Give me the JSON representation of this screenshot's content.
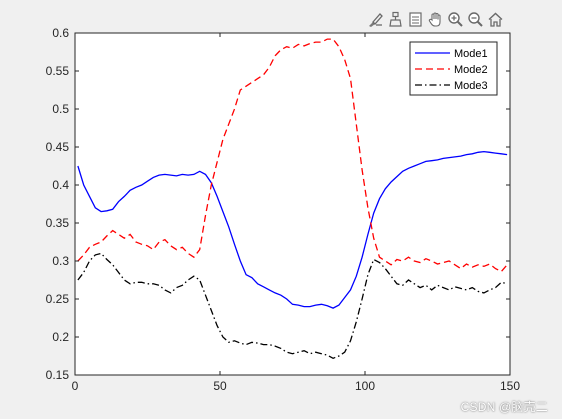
{
  "toolbar": {
    "icons": [
      "edit-brush-icon",
      "data-cursor-icon",
      "legend-toggle-icon",
      "pan-hand-icon",
      "zoom-in-icon",
      "zoom-out-icon",
      "home-icon"
    ]
  },
  "colors": {
    "background": "#f0f0f0",
    "axes_bg": "#ffffff",
    "mode1": "#0000ff",
    "mode2": "#ff0000",
    "mode3": "#000000"
  },
  "watermark": "CSDN @脑壳二",
  "chart_data": {
    "type": "line",
    "title": "",
    "xlabel": "",
    "ylabel": "",
    "xlim": [
      0,
      150
    ],
    "ylim": [
      0.15,
      0.6
    ],
    "xticks": [
      "0",
      "50",
      "100",
      "150"
    ],
    "yticks": [
      "0.15",
      "0.2",
      "0.25",
      "0.3",
      "0.35",
      "0.4",
      "0.45",
      "0.5",
      "0.55",
      "0.6"
    ],
    "grid": false,
    "legend_position": "top-right",
    "series": [
      {
        "name": "Mode1",
        "style": "solid",
        "color": "#0000ff",
        "points": [
          [
            1,
            0.425
          ],
          [
            3,
            0.4
          ],
          [
            5,
            0.385
          ],
          [
            7,
            0.37
          ],
          [
            9,
            0.365
          ],
          [
            11,
            0.366
          ],
          [
            13,
            0.368
          ],
          [
            15,
            0.378
          ],
          [
            17,
            0.385
          ],
          [
            19,
            0.393
          ],
          [
            21,
            0.397
          ],
          [
            23,
            0.4
          ],
          [
            25,
            0.405
          ],
          [
            27,
            0.41
          ],
          [
            29,
            0.413
          ],
          [
            31,
            0.414
          ],
          [
            33,
            0.413
          ],
          [
            35,
            0.412
          ],
          [
            37,
            0.414
          ],
          [
            39,
            0.413
          ],
          [
            41,
            0.414
          ],
          [
            43,
            0.418
          ],
          [
            45,
            0.414
          ],
          [
            47,
            0.403
          ],
          [
            49,
            0.385
          ],
          [
            51,
            0.365
          ],
          [
            53,
            0.345
          ],
          [
            55,
            0.322
          ],
          [
            57,
            0.3
          ],
          [
            59,
            0.282
          ],
          [
            61,
            0.278
          ],
          [
            63,
            0.27
          ],
          [
            65,
            0.266
          ],
          [
            67,
            0.262
          ],
          [
            69,
            0.258
          ],
          [
            71,
            0.255
          ],
          [
            73,
            0.25
          ],
          [
            75,
            0.243
          ],
          [
            77,
            0.242
          ],
          [
            79,
            0.24
          ],
          [
            81,
            0.24
          ],
          [
            83,
            0.242
          ],
          [
            85,
            0.243
          ],
          [
            87,
            0.241
          ],
          [
            89,
            0.238
          ],
          [
            91,
            0.242
          ],
          [
            93,
            0.252
          ],
          [
            95,
            0.262
          ],
          [
            97,
            0.28
          ],
          [
            99,
            0.305
          ],
          [
            101,
            0.335
          ],
          [
            103,
            0.363
          ],
          [
            105,
            0.382
          ],
          [
            107,
            0.395
          ],
          [
            109,
            0.404
          ],
          [
            111,
            0.411
          ],
          [
            113,
            0.418
          ],
          [
            115,
            0.422
          ],
          [
            117,
            0.425
          ],
          [
            119,
            0.428
          ],
          [
            121,
            0.431
          ],
          [
            123,
            0.432
          ],
          [
            125,
            0.433
          ],
          [
            127,
            0.435
          ],
          [
            129,
            0.436
          ],
          [
            131,
            0.437
          ],
          [
            133,
            0.438
          ],
          [
            135,
            0.44
          ],
          [
            137,
            0.441
          ],
          [
            139,
            0.443
          ],
          [
            141,
            0.444
          ],
          [
            143,
            0.443
          ],
          [
            145,
            0.442
          ],
          [
            147,
            0.441
          ],
          [
            149,
            0.44
          ]
        ]
      },
      {
        "name": "Mode2",
        "style": "dashed",
        "color": "#ff0000",
        "points": [
          [
            1,
            0.3
          ],
          [
            3,
            0.308
          ],
          [
            5,
            0.318
          ],
          [
            7,
            0.322
          ],
          [
            9,
            0.325
          ],
          [
            11,
            0.333
          ],
          [
            13,
            0.34
          ],
          [
            15,
            0.335
          ],
          [
            17,
            0.33
          ],
          [
            19,
            0.335
          ],
          [
            21,
            0.325
          ],
          [
            23,
            0.322
          ],
          [
            25,
            0.32
          ],
          [
            27,
            0.315
          ],
          [
            29,
            0.325
          ],
          [
            31,
            0.328
          ],
          [
            33,
            0.32
          ],
          [
            35,
            0.315
          ],
          [
            37,
            0.318
          ],
          [
            39,
            0.31
          ],
          [
            41,
            0.305
          ],
          [
            43,
            0.315
          ],
          [
            45,
            0.36
          ],
          [
            47,
            0.4
          ],
          [
            49,
            0.43
          ],
          [
            51,
            0.46
          ],
          [
            53,
            0.48
          ],
          [
            55,
            0.5
          ],
          [
            57,
            0.525
          ],
          [
            59,
            0.53
          ],
          [
            61,
            0.535
          ],
          [
            63,
            0.54
          ],
          [
            65,
            0.545
          ],
          [
            67,
            0.555
          ],
          [
            69,
            0.57
          ],
          [
            71,
            0.578
          ],
          [
            73,
            0.582
          ],
          [
            75,
            0.58
          ],
          [
            77,
            0.585
          ],
          [
            79,
            0.583
          ],
          [
            81,
            0.586
          ],
          [
            83,
            0.588
          ],
          [
            85,
            0.588
          ],
          [
            87,
            0.592
          ],
          [
            89,
            0.592
          ],
          [
            91,
            0.582
          ],
          [
            93,
            0.565
          ],
          [
            95,
            0.54
          ],
          [
            97,
            0.48
          ],
          [
            99,
            0.42
          ],
          [
            101,
            0.37
          ],
          [
            103,
            0.33
          ],
          [
            105,
            0.305
          ],
          [
            107,
            0.3
          ],
          [
            109,
            0.295
          ],
          [
            111,
            0.302
          ],
          [
            113,
            0.3
          ],
          [
            115,
            0.305
          ],
          [
            117,
            0.3
          ],
          [
            119,
            0.298
          ],
          [
            121,
            0.303
          ],
          [
            123,
            0.3
          ],
          [
            125,
            0.296
          ],
          [
            127,
            0.298
          ],
          [
            129,
            0.3
          ],
          [
            131,
            0.295
          ],
          [
            133,
            0.29
          ],
          [
            135,
            0.296
          ],
          [
            137,
            0.292
          ],
          [
            139,
            0.295
          ],
          [
            141,
            0.293
          ],
          [
            143,
            0.296
          ],
          [
            145,
            0.29
          ],
          [
            147,
            0.286
          ],
          [
            149,
            0.295
          ]
        ]
      },
      {
        "name": "Mode3",
        "style": "dashdot",
        "color": "#000000",
        "points": [
          [
            1,
            0.275
          ],
          [
            3,
            0.285
          ],
          [
            5,
            0.3
          ],
          [
            7,
            0.308
          ],
          [
            9,
            0.31
          ],
          [
            11,
            0.302
          ],
          [
            13,
            0.295
          ],
          [
            15,
            0.285
          ],
          [
            17,
            0.275
          ],
          [
            19,
            0.27
          ],
          [
            21,
            0.272
          ],
          [
            23,
            0.272
          ],
          [
            25,
            0.27
          ],
          [
            27,
            0.27
          ],
          [
            29,
            0.268
          ],
          [
            31,
            0.262
          ],
          [
            33,
            0.258
          ],
          [
            35,
            0.265
          ],
          [
            37,
            0.268
          ],
          [
            39,
            0.275
          ],
          [
            41,
            0.28
          ],
          [
            43,
            0.275
          ],
          [
            45,
            0.255
          ],
          [
            47,
            0.235
          ],
          [
            49,
            0.215
          ],
          [
            51,
            0.2
          ],
          [
            53,
            0.193
          ],
          [
            55,
            0.195
          ],
          [
            57,
            0.192
          ],
          [
            59,
            0.19
          ],
          [
            61,
            0.193
          ],
          [
            63,
            0.192
          ],
          [
            65,
            0.19
          ],
          [
            67,
            0.19
          ],
          [
            69,
            0.188
          ],
          [
            71,
            0.185
          ],
          [
            73,
            0.18
          ],
          [
            75,
            0.178
          ],
          [
            77,
            0.18
          ],
          [
            79,
            0.182
          ],
          [
            81,
            0.178
          ],
          [
            83,
            0.18
          ],
          [
            85,
            0.178
          ],
          [
            87,
            0.176
          ],
          [
            89,
            0.172
          ],
          [
            91,
            0.175
          ],
          [
            93,
            0.18
          ],
          [
            95,
            0.195
          ],
          [
            97,
            0.22
          ],
          [
            99,
            0.25
          ],
          [
            101,
            0.282
          ],
          [
            103,
            0.302
          ],
          [
            105,
            0.298
          ],
          [
            107,
            0.29
          ],
          [
            109,
            0.28
          ],
          [
            111,
            0.27
          ],
          [
            113,
            0.268
          ],
          [
            115,
            0.275
          ],
          [
            117,
            0.27
          ],
          [
            119,
            0.265
          ],
          [
            121,
            0.268
          ],
          [
            123,
            0.262
          ],
          [
            125,
            0.268
          ],
          [
            127,
            0.265
          ],
          [
            129,
            0.262
          ],
          [
            131,
            0.266
          ],
          [
            133,
            0.264
          ],
          [
            135,
            0.262
          ],
          [
            137,
            0.265
          ],
          [
            139,
            0.26
          ],
          [
            141,
            0.258
          ],
          [
            143,
            0.262
          ],
          [
            145,
            0.265
          ],
          [
            147,
            0.272
          ],
          [
            149,
            0.27
          ]
        ]
      }
    ]
  }
}
